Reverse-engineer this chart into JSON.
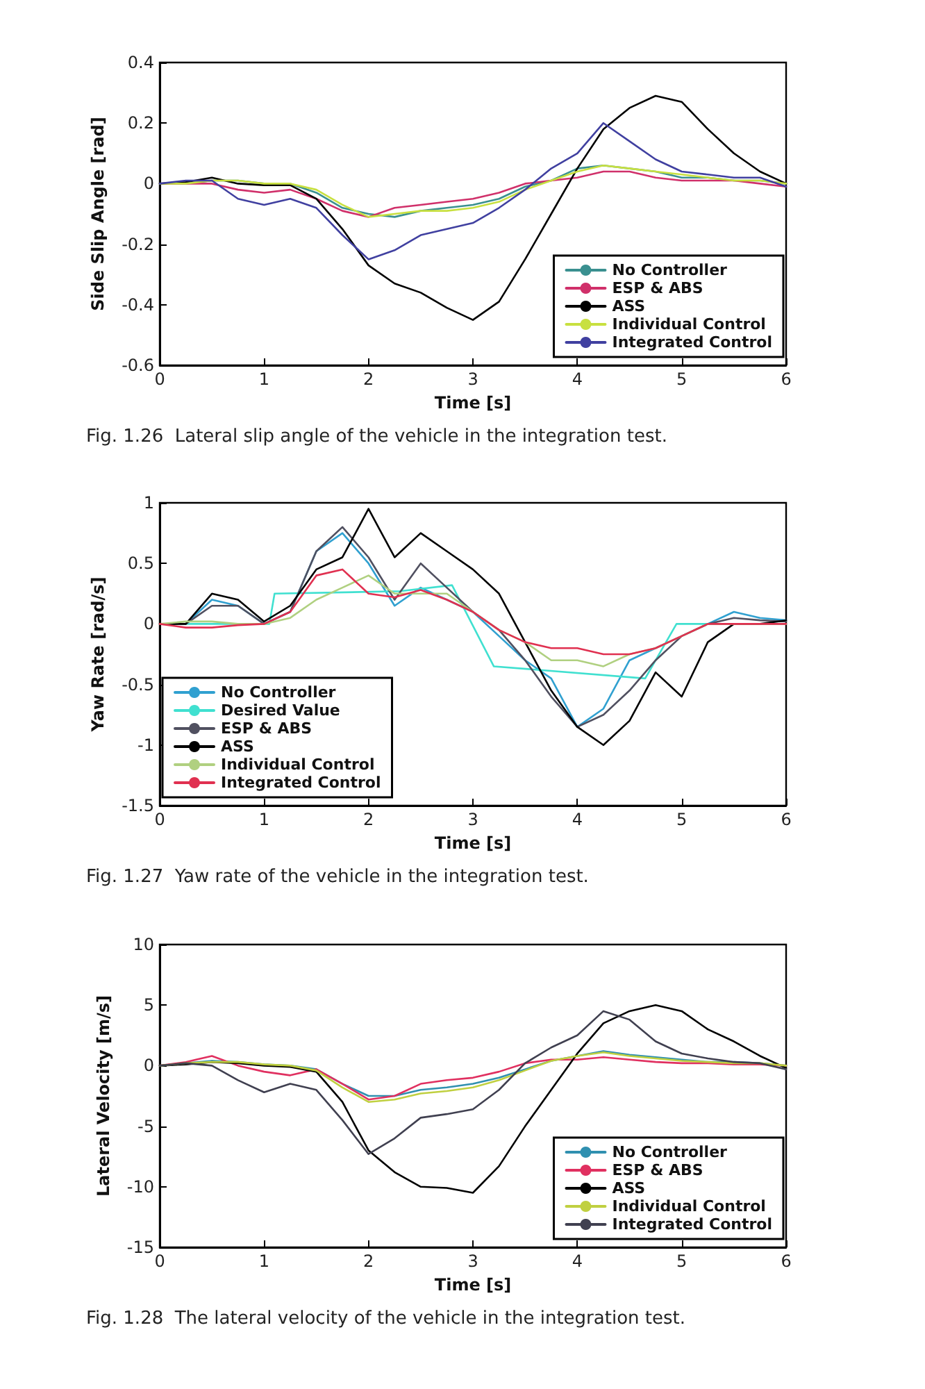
{
  "chart_data": [
    {
      "type": "line",
      "ylabel": "Side Slip Angle [rad]",
      "xlabel": "Time [s]",
      "annotations": [
        "Fig. 1.26  Lateral slip angle of the vehicle in the integration test."
      ],
      "xlim": [
        0,
        6
      ],
      "xticks": [
        0,
        1,
        2,
        3,
        4,
        5,
        6
      ],
      "ylim": [
        -0.6,
        0.4
      ],
      "yticks": [
        -0.6,
        -0.4,
        -0.2,
        0,
        0.2,
        0.4
      ],
      "legend": "bottom right",
      "marker": "none",
      "line_style": "solid",
      "x": [
        0,
        0.25,
        0.5,
        0.75,
        1,
        1.25,
        1.5,
        1.75,
        2,
        2.25,
        2.5,
        2.75,
        3,
        3.25,
        3.5,
        3.75,
        4,
        4.25,
        4.5,
        4.75,
        5,
        5.25,
        5.5,
        5.75,
        6
      ],
      "series": [
        {
          "name": "No Controller",
          "color": "#3a9090",
          "values": [
            0,
            0,
            0.01,
            0.01,
            0,
            0,
            -0.03,
            -0.08,
            -0.1,
            -0.11,
            -0.09,
            -0.08,
            -0.07,
            -0.05,
            -0.01,
            0.01,
            0.05,
            0.06,
            0.05,
            0.04,
            0.02,
            0.02,
            0.01,
            0.01,
            0
          ]
        },
        {
          "name": "ESP & ABS",
          "color": "#d0306a",
          "values": [
            0,
            0,
            0,
            -0.02,
            -0.03,
            -0.02,
            -0.05,
            -0.09,
            -0.11,
            -0.08,
            -0.07,
            -0.06,
            -0.05,
            -0.03,
            0,
            0.01,
            0.02,
            0.04,
            0.04,
            0.02,
            0.01,
            0.01,
            0.01,
            0,
            -0.01
          ]
        },
        {
          "name": "ASS",
          "color": "#000000",
          "values": [
            0,
            0.005,
            0.02,
            0,
            -0.005,
            -0.005,
            -0.05,
            -0.15,
            -0.27,
            -0.33,
            -0.36,
            -0.41,
            -0.45,
            -0.39,
            -0.25,
            -0.1,
            0.05,
            0.18,
            0.25,
            0.29,
            0.27,
            0.18,
            0.1,
            0.04,
            0
          ]
        },
        {
          "name": "Individual Control",
          "color": "#c8e040",
          "values": [
            0,
            0,
            0.01,
            0.01,
            0,
            0,
            -0.02,
            -0.07,
            -0.11,
            -0.1,
            -0.09,
            -0.09,
            -0.08,
            -0.06,
            -0.02,
            0.01,
            0.04,
            0.06,
            0.05,
            0.04,
            0.03,
            0.02,
            0.01,
            0.01,
            0
          ]
        },
        {
          "name": "Integrated Control",
          "color": "#4040a0",
          "values": [
            0,
            0.01,
            0.01,
            -0.05,
            -0.07,
            -0.05,
            -0.08,
            -0.17,
            -0.25,
            -0.22,
            -0.17,
            -0.15,
            -0.13,
            -0.08,
            -0.02,
            0.05,
            0.1,
            0.2,
            0.14,
            0.08,
            0.04,
            0.03,
            0.02,
            0.02,
            -0.01
          ]
        }
      ]
    },
    {
      "type": "line",
      "ylabel": "Yaw Rate [rad/s]",
      "xlabel": "Time [s]",
      "annotations": [
        "Fig. 1.27  Yaw rate of the vehicle in the integration test."
      ],
      "xlim": [
        0,
        6
      ],
      "xticks": [
        0,
        1,
        2,
        3,
        4,
        5,
        6
      ],
      "ylim": [
        -1.5,
        1
      ],
      "yticks": [
        -1.5,
        -1,
        -0.5,
        0,
        0.5,
        1
      ],
      "legend": "bottom left",
      "marker": "none",
      "line_style": "solid",
      "x": [
        0,
        0.25,
        0.5,
        0.75,
        1,
        1.25,
        1.5,
        1.75,
        2,
        2.25,
        2.5,
        2.75,
        3,
        3.25,
        3.5,
        3.75,
        4,
        4.25,
        4.5,
        4.75,
        5,
        5.25,
        5.5,
        5.75,
        6
      ],
      "series": [
        {
          "name": "No Controller",
          "color": "#30a0d0",
          "values": [
            0,
            0,
            0.2,
            0.15,
            0,
            0.1,
            0.6,
            0.75,
            0.5,
            0.15,
            0.3,
            0.2,
            0.1,
            -0.1,
            -0.3,
            -0.45,
            -0.85,
            -0.7,
            -0.3,
            -0.2,
            -0.1,
            0,
            0.1,
            0.05,
            0.03
          ]
        },
        {
          "name": "Desired Value",
          "color": "#40e0d0",
          "x": [
            0,
            1.05,
            1.1,
            2.3,
            2.8,
            3.2,
            4.65,
            4.95,
            6
          ],
          "values": [
            0,
            0,
            0.25,
            0.27,
            0.32,
            -0.35,
            -0.45,
            0,
            0
          ]
        },
        {
          "name": "ESP & ABS",
          "color": "#505060",
          "values": [
            0,
            0,
            0.15,
            0.15,
            0,
            0.1,
            0.6,
            0.8,
            0.55,
            0.2,
            0.5,
            0.3,
            0.1,
            -0.05,
            -0.3,
            -0.6,
            -0.85,
            -0.75,
            -0.55,
            -0.3,
            -0.1,
            0,
            0.05,
            0.03,
            0.02
          ]
        },
        {
          "name": "ASS",
          "color": "#000000",
          "values": [
            0,
            0,
            0.25,
            0.2,
            0.02,
            0.15,
            0.45,
            0.55,
            0.95,
            0.55,
            0.75,
            0.6,
            0.45,
            0.25,
            -0.15,
            -0.55,
            -0.85,
            -1,
            -0.8,
            -0.4,
            -0.6,
            -0.15,
            0,
            0,
            0.03
          ]
        },
        {
          "name": "Individual Control",
          "color": "#b0d080",
          "values": [
            0,
            0.02,
            0.02,
            0,
            0,
            0.05,
            0.2,
            0.3,
            0.4,
            0.25,
            0.25,
            0.25,
            0.1,
            -0.05,
            -0.15,
            -0.3,
            -0.3,
            -0.35,
            -0.25,
            -0.2,
            -0.1,
            0,
            0,
            0,
            0
          ]
        },
        {
          "name": "Integrated Control",
          "color": "#e03050",
          "values": [
            0,
            -0.03,
            -0.03,
            -0.01,
            0,
            0.1,
            0.4,
            0.45,
            0.25,
            0.22,
            0.28,
            0.2,
            0.1,
            -0.05,
            -0.15,
            -0.2,
            -0.2,
            -0.25,
            -0.25,
            -0.2,
            -0.1,
            0,
            0,
            0,
            0
          ]
        }
      ]
    },
    {
      "type": "line",
      "ylabel": "Lateral Velocity [m/s]",
      "xlabel": "Time [s]",
      "annotations": [
        "Fig. 1.28  The lateral velocity of the vehicle in the integration test."
      ],
      "xlim": [
        0,
        6
      ],
      "xticks": [
        0,
        1,
        2,
        3,
        4,
        5,
        6
      ],
      "ylim": [
        -15,
        10
      ],
      "yticks": [
        -15,
        -10,
        -5,
        0,
        5,
        10
      ],
      "legend": "bottom right",
      "marker": "none",
      "line_style": "solid",
      "x": [
        0,
        0.25,
        0.5,
        0.75,
        1,
        1.25,
        1.5,
        1.75,
        2,
        2.25,
        2.5,
        2.75,
        3,
        3.25,
        3.5,
        3.75,
        4,
        4.25,
        4.5,
        4.75,
        5,
        5.25,
        5.5,
        5.75,
        6
      ],
      "series": [
        {
          "name": "No Controller",
          "color": "#3090b0",
          "values": [
            0,
            0.2,
            0.4,
            0.3,
            0.1,
            0,
            -0.3,
            -1.5,
            -2.5,
            -2.5,
            -2,
            -1.8,
            -1.5,
            -1,
            -0.3,
            0.4,
            0.8,
            1.2,
            0.9,
            0.7,
            0.5,
            0.3,
            0.3,
            0.2,
            0
          ]
        },
        {
          "name": "ESP & ABS",
          "color": "#e03060",
          "values": [
            0,
            0.3,
            0.8,
            0,
            -0.5,
            -0.8,
            -0.3,
            -1.5,
            -2.8,
            -2.5,
            -1.5,
            -1.2,
            -1,
            -0.5,
            0.2,
            0.5,
            0.5,
            0.7,
            0.5,
            0.3,
            0.2,
            0.2,
            0.1,
            0.1,
            0
          ]
        },
        {
          "name": "ASS",
          "color": "#000000",
          "values": [
            0,
            0.1,
            0.3,
            0.2,
            0,
            -0.1,
            -0.5,
            -3,
            -7,
            -8.8,
            -10,
            -10.1,
            -10.5,
            -8.3,
            -5,
            -2,
            1,
            3.5,
            4.5,
            5,
            4.5,
            3,
            2,
            0.8,
            -0.2
          ]
        },
        {
          "name": "Individual Control",
          "color": "#c0d040",
          "values": [
            0,
            0.2,
            0.3,
            0.3,
            0.1,
            0,
            -0.4,
            -1.8,
            -3,
            -2.8,
            -2.3,
            -2.1,
            -1.8,
            -1.2,
            -0.4,
            0.4,
            0.8,
            1.1,
            0.8,
            0.6,
            0.4,
            0.3,
            0.2,
            0.2,
            0
          ]
        },
        {
          "name": "Integrated Control",
          "color": "#404050",
          "values": [
            0,
            0.2,
            0,
            -1.2,
            -2.2,
            -1.5,
            -2,
            -4.5,
            -7.3,
            -6,
            -4.3,
            -4,
            -3.6,
            -2,
            0.2,
            1.5,
            2.5,
            4.5,
            3.8,
            2,
            1,
            0.6,
            0.3,
            0.2,
            -0.3
          ]
        }
      ]
    }
  ]
}
